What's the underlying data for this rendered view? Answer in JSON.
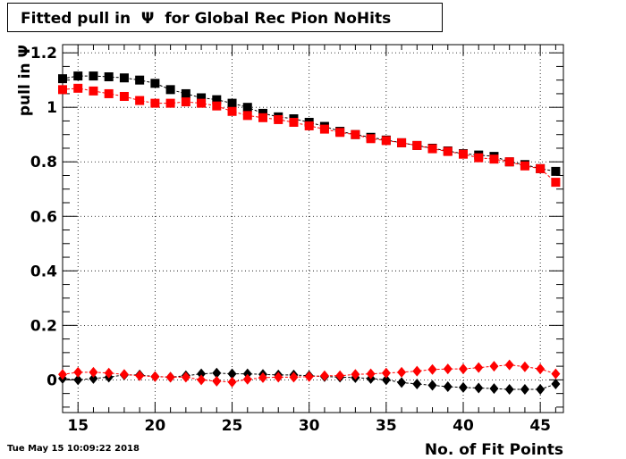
{
  "title": "Fitted pull in  Ψ  for Global Rec Pion NoHits",
  "timestamp": "Tue May 15 10:09:22 2018",
  "chart_data": {
    "type": "scatter",
    "title": "Fitted pull in  Ψ  for Global Rec Pion NoHits",
    "xlabel": "No. of Fit Points",
    "ylabel": "pull in Ψ",
    "xlim": [
      14,
      46.5
    ],
    "ylim": [
      -0.12,
      1.23
    ],
    "xticks": [
      15,
      20,
      25,
      30,
      35,
      40,
      45
    ],
    "yticks": [
      0,
      0.2,
      0.4,
      0.6,
      0.8,
      1,
      1.2
    ],
    "ytick_labels": [
      "0",
      "0.2",
      "0.4",
      "0.6",
      "0.8",
      "1",
      "1.2"
    ],
    "grid": true,
    "x": [
      14,
      15,
      16,
      17,
      18,
      19,
      20,
      21,
      22,
      23,
      24,
      25,
      26,
      27,
      28,
      29,
      30,
      31,
      32,
      33,
      34,
      35,
      36,
      37,
      38,
      39,
      40,
      41,
      42,
      43,
      44,
      45,
      46
    ],
    "series": [
      {
        "marker": "square",
        "color": "#000000",
        "values": [
          1.105,
          1.115,
          1.115,
          1.112,
          1.108,
          1.1,
          1.088,
          1.065,
          1.05,
          1.035,
          1.028,
          1.015,
          1.0,
          0.978,
          0.965,
          0.958,
          0.945,
          0.93,
          0.912,
          0.9,
          0.89,
          0.88,
          0.87,
          0.86,
          0.85,
          0.84,
          0.83,
          0.825,
          0.82,
          0.8,
          0.79,
          0.775,
          0.765
        ]
      },
      {
        "marker": "square",
        "color": "#ff0000",
        "values": [
          1.065,
          1.07,
          1.06,
          1.05,
          1.04,
          1.025,
          1.015,
          1.015,
          1.02,
          1.015,
          1.005,
          0.985,
          0.97,
          0.962,
          0.955,
          0.945,
          0.932,
          0.92,
          0.908,
          0.9,
          0.885,
          0.878,
          0.87,
          0.86,
          0.848,
          0.838,
          0.828,
          0.815,
          0.81,
          0.8,
          0.785,
          0.775,
          0.725
        ]
      },
      {
        "marker": "diamond",
        "color": "#000000",
        "values": [
          0.005,
          0.0,
          0.005,
          0.01,
          0.018,
          0.018,
          0.012,
          0.01,
          0.015,
          0.022,
          0.025,
          0.022,
          0.022,
          0.02,
          0.018,
          0.018,
          0.015,
          0.012,
          0.01,
          0.008,
          0.005,
          0.0,
          -0.01,
          -0.015,
          -0.02,
          -0.025,
          -0.028,
          -0.03,
          -0.032,
          -0.035,
          -0.035,
          -0.035,
          -0.015
        ]
      },
      {
        "marker": "diamond",
        "color": "#ff0000",
        "values": [
          0.02,
          0.028,
          0.028,
          0.025,
          0.02,
          0.015,
          0.012,
          0.01,
          0.01,
          0.0,
          -0.005,
          -0.008,
          0.002,
          0.008,
          0.01,
          0.01,
          0.012,
          0.015,
          0.015,
          0.02,
          0.022,
          0.025,
          0.028,
          0.032,
          0.038,
          0.04,
          0.04,
          0.045,
          0.05,
          0.055,
          0.048,
          0.04,
          0.022
        ]
      }
    ]
  }
}
